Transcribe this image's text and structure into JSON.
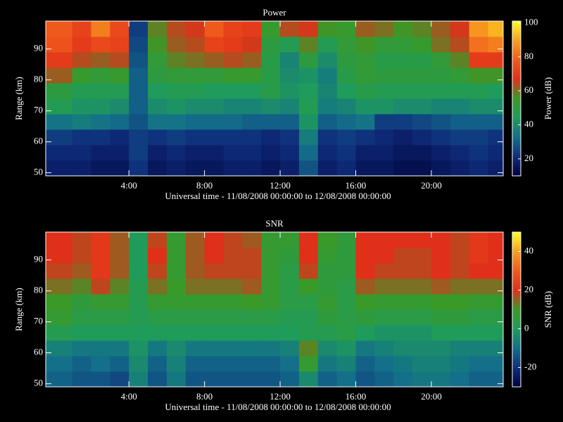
{
  "chart_data": [
    {
      "type": "heatmap",
      "title": "Power",
      "xlabel": "Universal time - 11/08/2008 00:00:00 to 12/08/2008 00:00:00",
      "ylabel": "Range (km)",
      "colorbar_label": "Power (dB)",
      "xlim": [
        -0.4,
        23.8
      ],
      "xticks": [
        {
          "value": 4,
          "label": "4:00"
        },
        {
          "value": 8,
          "label": "8:00"
        },
        {
          "value": 12,
          "label": "12:00"
        },
        {
          "value": 16,
          "label": "16:00"
        },
        {
          "value": 20,
          "label": "20:00"
        }
      ],
      "ylim": [
        49,
        99
      ],
      "yticks": [
        50,
        60,
        70,
        80,
        90
      ],
      "zlim": [
        10,
        101
      ],
      "zticks": [
        20,
        40,
        60,
        80,
        100
      ],
      "colormap": [
        "#00003a",
        "#0f2e7c",
        "#136f8a",
        "#1f9b5a",
        "#3a9a28",
        "#e0301a",
        "#f05a1c",
        "#f8a020",
        "#ffff20"
      ],
      "xbins": [
        -0.4,
        1,
        2,
        3,
        4,
        5,
        6,
        7,
        8,
        9,
        10,
        11,
        12,
        13,
        14,
        15,
        16,
        17,
        18,
        19,
        20,
        21,
        22,
        23,
        23.8
      ],
      "ybins": [
        49,
        54,
        59,
        64,
        69,
        74,
        79,
        84,
        89,
        94,
        99
      ],
      "z": [
        [
          18,
          18,
          16,
          16,
          22,
          16,
          18,
          16,
          16,
          18,
          18,
          16,
          18,
          28,
          18,
          20,
          16,
          16,
          14,
          14,
          16,
          18,
          20,
          18
        ],
        [
          20,
          20,
          18,
          18,
          24,
          18,
          20,
          18,
          18,
          20,
          20,
          18,
          20,
          32,
          20,
          22,
          18,
          18,
          16,
          16,
          18,
          20,
          22,
          20
        ],
        [
          24,
          22,
          22,
          20,
          24,
          22,
          24,
          22,
          22,
          22,
          22,
          20,
          22,
          36,
          22,
          24,
          22,
          20,
          18,
          20,
          22,
          24,
          24,
          22
        ],
        [
          34,
          36,
          34,
          32,
          28,
          34,
          34,
          32,
          32,
          32,
          30,
          30,
          30,
          42,
          30,
          32,
          34,
          24,
          24,
          26,
          28,
          30,
          30,
          30
        ],
        [
          46,
          42,
          42,
          40,
          30,
          40,
          42,
          40,
          40,
          38,
          38,
          40,
          38,
          46,
          36,
          38,
          42,
          42,
          40,
          40,
          38,
          38,
          40,
          40
        ],
        [
          50,
          46,
          46,
          46,
          30,
          44,
          46,
          46,
          44,
          44,
          44,
          48,
          42,
          44,
          38,
          44,
          48,
          46,
          46,
          46,
          46,
          46,
          46,
          44
        ],
        [
          62,
          54,
          52,
          54,
          30,
          50,
          52,
          52,
          52,
          54,
          54,
          48,
          40,
          42,
          36,
          48,
          52,
          50,
          50,
          50,
          50,
          52,
          56,
          56
        ],
        [
          70,
          64,
          62,
          64,
          28,
          52,
          58,
          60,
          62,
          64,
          62,
          48,
          38,
          50,
          40,
          50,
          52,
          48,
          48,
          48,
          52,
          58,
          70,
          70
        ],
        [
          76,
          70,
          74,
          72,
          26,
          56,
          62,
          64,
          72,
          70,
          66,
          50,
          46,
          58,
          46,
          52,
          56,
          52,
          52,
          54,
          60,
          64,
          82,
          84
        ],
        [
          78,
          72,
          84,
          74,
          24,
          58,
          64,
          66,
          78,
          72,
          70,
          54,
          64,
          66,
          56,
          54,
          62,
          60,
          56,
          58,
          62,
          66,
          88,
          92
        ]
      ]
    },
    {
      "type": "heatmap",
      "title": "SNR",
      "xlabel": "Universal time - 11/08/2008 00:00:00 to 12/08/2008 00:00:00",
      "ylabel": "Range (km)",
      "colorbar_label": "SNR (dB)",
      "xlim": [
        -0.4,
        23.8
      ],
      "xticks": [
        {
          "value": 4,
          "label": "4:00"
        },
        {
          "value": 8,
          "label": "8:00"
        },
        {
          "value": 12,
          "label": "12:00"
        },
        {
          "value": 16,
          "label": "16:00"
        },
        {
          "value": 20,
          "label": "20:00"
        }
      ],
      "ylim": [
        49,
        99
      ],
      "yticks": [
        50,
        60,
        70,
        80,
        90
      ],
      "zlim": [
        -30,
        50
      ],
      "zticks": [
        -20,
        0,
        20,
        40
      ],
      "colormap": [
        "#00003a",
        "#0f2e7c",
        "#136f8a",
        "#1f9b5a",
        "#3a9a28",
        "#e0301a",
        "#f05a1c",
        "#f8a020",
        "#ffff20"
      ],
      "xbins": [
        -0.4,
        1,
        2,
        3,
        4,
        5,
        6,
        7,
        8,
        9,
        10,
        11,
        12,
        13,
        14,
        15,
        16,
        17,
        18,
        19,
        20,
        21,
        22,
        23,
        23.8
      ],
      "ybins": [
        49,
        54,
        59,
        64,
        69,
        74,
        79,
        84,
        89,
        94,
        99
      ],
      "z": [
        [
          -12,
          -14,
          -14,
          -16,
          -6,
          -14,
          -8,
          -14,
          -14,
          -14,
          -14,
          -14,
          -12,
          -4,
          -12,
          -10,
          -14,
          -12,
          -10,
          -8,
          -8,
          -10,
          -12,
          -12
        ],
        [
          -10,
          -12,
          -10,
          -12,
          -4,
          -12,
          -6,
          -12,
          -12,
          -12,
          -12,
          -12,
          -10,
          8,
          -8,
          -6,
          -12,
          -10,
          -8,
          -6,
          -6,
          -8,
          -10,
          -10
        ],
        [
          -6,
          -8,
          -8,
          -8,
          -2,
          -8,
          -4,
          -8,
          -8,
          -8,
          -8,
          -8,
          -6,
          12,
          -4,
          -2,
          -8,
          -6,
          -4,
          -4,
          -4,
          -6,
          -6,
          -6
        ],
        [
          2,
          0,
          0,
          0,
          0,
          0,
          0,
          0,
          0,
          0,
          0,
          0,
          0,
          2,
          2,
          4,
          0,
          -2,
          -2,
          -2,
          0,
          0,
          0,
          0
        ],
        [
          8,
          4,
          4,
          4,
          2,
          4,
          4,
          4,
          4,
          4,
          4,
          4,
          2,
          2,
          6,
          4,
          6,
          4,
          4,
          4,
          6,
          6,
          4,
          4
        ],
        [
          10,
          6,
          8,
          8,
          2,
          8,
          8,
          8,
          8,
          8,
          10,
          8,
          4,
          4,
          8,
          4,
          10,
          8,
          8,
          8,
          10,
          10,
          8,
          8
        ],
        [
          14,
          12,
          18,
          12,
          2,
          14,
          10,
          14,
          14,
          14,
          16,
          8,
          4,
          10,
          6,
          4,
          16,
          14,
          14,
          14,
          16,
          14,
          14,
          14
        ],
        [
          18,
          16,
          22,
          16,
          0,
          18,
          8,
          16,
          18,
          18,
          18,
          8,
          4,
          18,
          6,
          6,
          20,
          18,
          18,
          18,
          20,
          18,
          20,
          20
        ],
        [
          20,
          18,
          22,
          16,
          0,
          20,
          8,
          16,
          20,
          18,
          18,
          8,
          6,
          20,
          8,
          6,
          20,
          20,
          18,
          18,
          20,
          18,
          22,
          20
        ],
        [
          20,
          18,
          22,
          16,
          0,
          18,
          8,
          16,
          20,
          18,
          16,
          8,
          8,
          20,
          10,
          6,
          20,
          20,
          20,
          20,
          20,
          18,
          22,
          20
        ]
      ]
    }
  ]
}
